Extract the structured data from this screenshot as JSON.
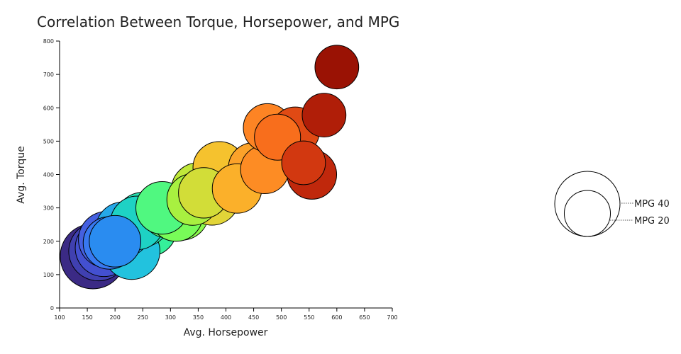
{
  "chart_data": {
    "type": "scatter",
    "title": "Correlation Between Torque, Horsepower, and MPG",
    "xlabel": "Avg. Horsepower",
    "ylabel": "Avg. Torque",
    "xlim": [
      100,
      700
    ],
    "ylim": [
      0,
      800
    ],
    "xticks": [
      100,
      150,
      200,
      250,
      300,
      350,
      400,
      450,
      500,
      550,
      600,
      650,
      700
    ],
    "yticks": [
      0,
      100,
      200,
      300,
      400,
      500,
      600,
      700,
      800
    ],
    "size_encoding": "MPG",
    "points": [
      {
        "x": 160,
        "y": 155,
        "mpg": 40,
        "color": "#3b2a85"
      },
      {
        "x": 170,
        "y": 170,
        "mpg": 33,
        "color": "#4040b0"
      },
      {
        "x": 180,
        "y": 180,
        "mpg": 31,
        "color": "#4350d0"
      },
      {
        "x": 185,
        "y": 205,
        "mpg": 30,
        "color": "#4560e0"
      },
      {
        "x": 190,
        "y": 195,
        "mpg": 26,
        "color": "#3878f0"
      },
      {
        "x": 200,
        "y": 200,
        "mpg": 25,
        "color": "#2a8cf0"
      },
      {
        "x": 215,
        "y": 235,
        "mpg": 29,
        "color": "#26a8e8"
      },
      {
        "x": 230,
        "y": 170,
        "mpg": 30,
        "color": "#22c2de"
      },
      {
        "x": 240,
        "y": 255,
        "mpg": 27,
        "color": "#1ed2c4"
      },
      {
        "x": 250,
        "y": 265,
        "mpg": 28,
        "color": "#28e0b0"
      },
      {
        "x": 260,
        "y": 240,
        "mpg": 31,
        "color": "#35f09a"
      },
      {
        "x": 285,
        "y": 300,
        "mpg": 26,
        "color": "#50f880"
      },
      {
        "x": 295,
        "y": 290,
        "mpg": 27,
        "color": "#5cfc70"
      },
      {
        "x": 310,
        "y": 280,
        "mpg": 27,
        "color": "#78fc58"
      },
      {
        "x": 320,
        "y": 285,
        "mpg": 28,
        "color": "#8cfa4c"
      },
      {
        "x": 340,
        "y": 325,
        "mpg": 25,
        "color": "#a8f040"
      },
      {
        "x": 350,
        "y": 355,
        "mpg": 27,
        "color": "#c0e83a"
      },
      {
        "x": 360,
        "y": 345,
        "mpg": 24,
        "color": "#d2dd38"
      },
      {
        "x": 375,
        "y": 330,
        "mpg": 28,
        "color": "#e2d538"
      },
      {
        "x": 388,
        "y": 420,
        "mpg": 26,
        "color": "#f5c22e"
      },
      {
        "x": 420,
        "y": 358,
        "mpg": 23,
        "color": "#fbb02a"
      },
      {
        "x": 450,
        "y": 420,
        "mpg": 24,
        "color": "#fca22a"
      },
      {
        "x": 470,
        "y": 415,
        "mpg": 22,
        "color": "#fd8c24"
      },
      {
        "x": 475,
        "y": 540,
        "mpg": 22,
        "color": "#fd8424"
      },
      {
        "x": 493,
        "y": 512,
        "mpg": 20,
        "color": "#f86e1c"
      },
      {
        "x": 525,
        "y": 530,
        "mpg": 22,
        "color": "#e04a14"
      },
      {
        "x": 540,
        "y": 435,
        "mpg": 18,
        "color": "#d23810"
      },
      {
        "x": 555,
        "y": 400,
        "mpg": 23,
        "color": "#c0280c"
      },
      {
        "x": 577,
        "y": 578,
        "mpg": 18,
        "color": "#b01e08"
      },
      {
        "x": 600,
        "y": 722,
        "mpg": 18,
        "color": "#9a1204"
      }
    ],
    "legend": {
      "placement": "right",
      "items": [
        {
          "label": "MPG 40",
          "mpg": 40
        },
        {
          "label": "MPG 20",
          "mpg": 20
        }
      ]
    }
  }
}
